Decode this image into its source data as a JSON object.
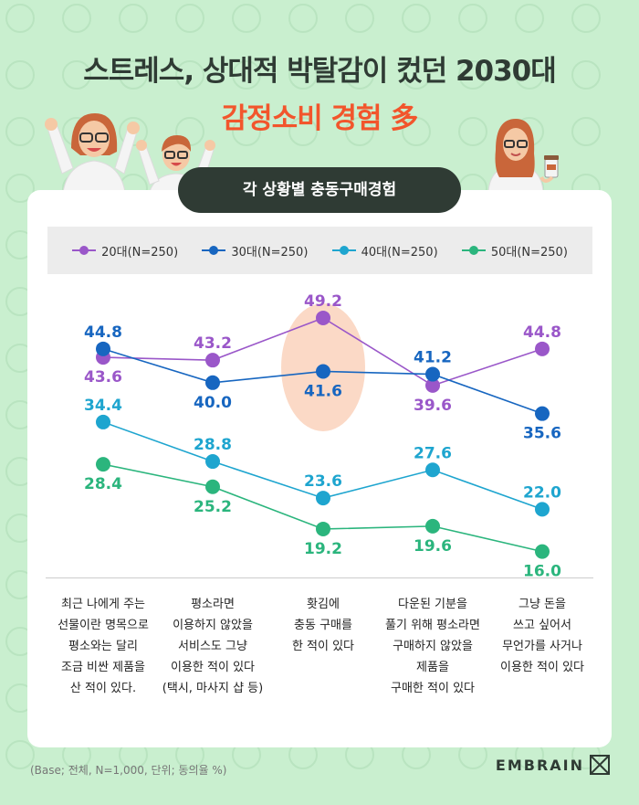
{
  "header": {
    "title_line1": "스트레스, 상대적 박탈감이 컸던 2030대",
    "title_line2": "감정소비 경험 多"
  },
  "section_label": "각 상황별 충동구매경험",
  "colors": {
    "background": "#c9efcf",
    "title": "#2f3b34",
    "accent": "#f2552c",
    "highlight": "#fbd9c6"
  },
  "illustration": {
    "people": [
      "woman-cheering-icon",
      "man-cheering-icon",
      "woman-coffee-icon"
    ]
  },
  "chart_data": {
    "type": "line",
    "categories": [
      "최근 나에게 주는\n선물이란 명목으로\n평소와는 달리\n조금 비싼 제품을\n산 적이 있다.",
      "평소라면\n이용하지 않았을\n서비스도 그냥\n이용한 적이 있다\n(택시, 마사지 샵 등)",
      "홧김에\n충동 구매를\n한 적이 있다",
      "다운된 기분을\n풀기 위해 평소라면\n구매하지 않았을\n제품을\n구매한 적이 있다",
      "그냥 돈을\n쓰고 싶어서\n무언가를 사거나\n이용한 적이 있다"
    ],
    "series": [
      {
        "name": "20대(N=250)",
        "color": "#9a57c9",
        "values": [
          43.6,
          43.2,
          49.2,
          39.6,
          44.8
        ]
      },
      {
        "name": "30대(N=250)",
        "color": "#1766c0",
        "values": [
          44.8,
          40.0,
          41.6,
          41.2,
          35.6
        ]
      },
      {
        "name": "40대(N=250)",
        "color": "#1ea5cf",
        "values": [
          34.4,
          28.8,
          23.6,
          27.6,
          22.0
        ]
      },
      {
        "name": "50대(N=250)",
        "color": "#2bb57d",
        "values": [
          28.4,
          25.2,
          19.2,
          19.6,
          16.0
        ]
      }
    ],
    "data_labels": [
      [
        "43.6",
        "43.2",
        "49.2",
        "39.6",
        "44.8"
      ],
      [
        "44.8",
        "40.0",
        "41.6",
        "41.2",
        "35.6"
      ],
      [
        "34.4",
        "28.8",
        "23.6",
        "27.6",
        "22.0"
      ],
      [
        "28.4",
        "25.2",
        "19.2",
        "19.6",
        "16.0"
      ]
    ],
    "highlight_category": 2,
    "legend_position": "top",
    "grid": false
  },
  "footnote": "(Base; 전체, N=1,000, 단위; 동의율 %)",
  "brand": "EMBRAIN"
}
